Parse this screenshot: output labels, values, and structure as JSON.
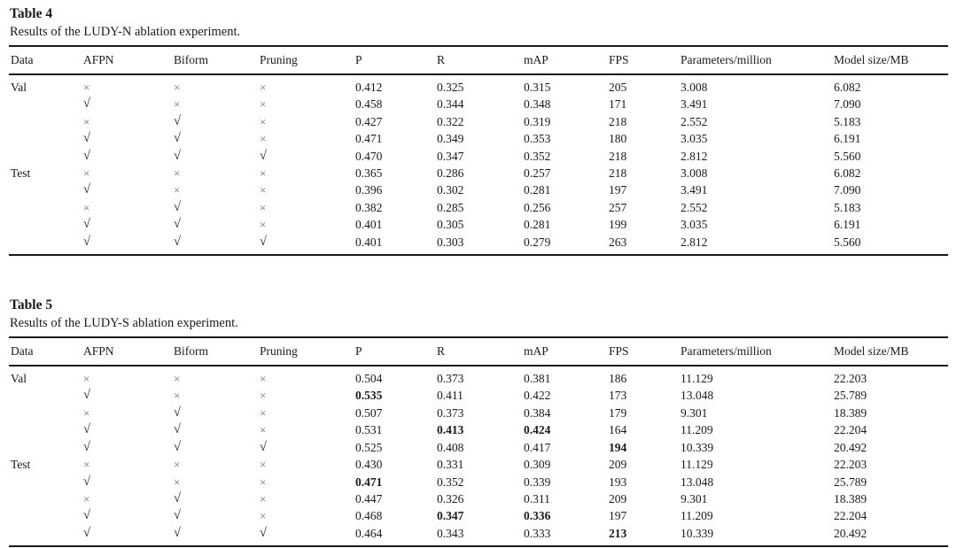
{
  "page": {
    "background_color": "#ffffff",
    "text_color": "#1a1a1a",
    "rule_color": "#1a1a1a",
    "cross_color": "#6f6f6f"
  },
  "symbols": {
    "check": "√",
    "cross": "×"
  },
  "tables": [
    {
      "title": "Table 4",
      "caption": "Results of the LUDY-N ablation experiment.",
      "columns": [
        "Data",
        "AFPN",
        "Biform",
        "Pruning",
        "P",
        "R",
        "mAP",
        "FPS",
        "Parameters/million",
        "Model size/MB"
      ],
      "rows": [
        [
          "Val",
          "×",
          "×",
          "×",
          "0.412",
          "0.325",
          "0.315",
          "205",
          "3.008",
          "6.082"
        ],
        [
          "",
          "√",
          "×",
          "×",
          "0.458",
          "0.344",
          "0.348",
          "171",
          "3.491",
          "7.090"
        ],
        [
          "",
          "×",
          "√",
          "×",
          "0.427",
          "0.322",
          "0.319",
          "218",
          "2.552",
          "5.183"
        ],
        [
          "",
          "√",
          "√",
          "×",
          "0.471",
          "0.349",
          "0.353",
          "180",
          "3.035",
          "6.191"
        ],
        [
          "",
          "√",
          "√",
          "√",
          "0.470",
          "0.347",
          "0.352",
          "218",
          "2.812",
          "5.560"
        ],
        [
          "Test",
          "×",
          "×",
          "×",
          "0.365",
          "0.286",
          "0.257",
          "218",
          "3.008",
          "6.082"
        ],
        [
          "",
          "√",
          "×",
          "×",
          "0.396",
          "0.302",
          "0.281",
          "197",
          "3.491",
          "7.090"
        ],
        [
          "",
          "×",
          "√",
          "×",
          "0.382",
          "0.285",
          "0.256",
          "257",
          "2.552",
          "5.183"
        ],
        [
          "",
          "√",
          "√",
          "×",
          "0.401",
          "0.305",
          "0.281",
          "199",
          "3.035",
          "6.191"
        ],
        [
          "",
          "√",
          "√",
          "√",
          "0.401",
          "0.303",
          "0.279",
          "263",
          "2.812",
          "5.560"
        ]
      ]
    },
    {
      "title": "Table 5",
      "caption": "Results of the LUDY-S ablation experiment.",
      "columns": [
        "Data",
        "AFPN",
        "Biform",
        "Pruning",
        "P",
        "R",
        "mAP",
        "FPS",
        "Parameters/million",
        "Model size/MB"
      ],
      "rows": [
        [
          "Val",
          "×",
          "×",
          "×",
          "0.504",
          "0.373",
          "0.381",
          "186",
          "11.129",
          "22.203"
        ],
        [
          "",
          "√",
          "×",
          "×",
          {
            "v": "0.535",
            "bold": true
          },
          "0.411",
          "0.422",
          "173",
          "13.048",
          "25.789"
        ],
        [
          "",
          "×",
          "√",
          "×",
          "0.507",
          "0.373",
          "0.384",
          "179",
          {
            "v": "9.301",
            "indent": true
          },
          "18.389"
        ],
        [
          "",
          "√",
          "√",
          "×",
          "0.531",
          {
            "v": "0.413",
            "bold": true
          },
          {
            "v": "0.424",
            "bold": true
          },
          "164",
          "11.209",
          "22.204"
        ],
        [
          "",
          "√",
          "√",
          "√",
          "0.525",
          "0.408",
          "0.417",
          {
            "v": "194",
            "bold": true
          },
          "10.339",
          "20.492"
        ],
        [
          "Test",
          "×",
          "×",
          "×",
          "0.430",
          "0.331",
          "0.309",
          "209",
          "11.129",
          "22.203"
        ],
        [
          "",
          "√",
          "×",
          "×",
          {
            "v": "0.471",
            "bold": true
          },
          "0.352",
          "0.339",
          "193",
          "13.048",
          "25.789"
        ],
        [
          "",
          "×",
          "√",
          "×",
          "0.447",
          "0.326",
          "0.311",
          "209",
          {
            "v": "9.301",
            "indent": true
          },
          "18.389"
        ],
        [
          "",
          "√",
          "√",
          "×",
          "0.468",
          {
            "v": "0.347",
            "bold": true
          },
          {
            "v": "0.336",
            "bold": true
          },
          "197",
          "11.209",
          "22.204"
        ],
        [
          "",
          "√",
          "√",
          "√",
          "0.464",
          "0.343",
          "0.333",
          {
            "v": "213",
            "bold": true
          },
          "10.339",
          "20.492"
        ]
      ]
    }
  ]
}
